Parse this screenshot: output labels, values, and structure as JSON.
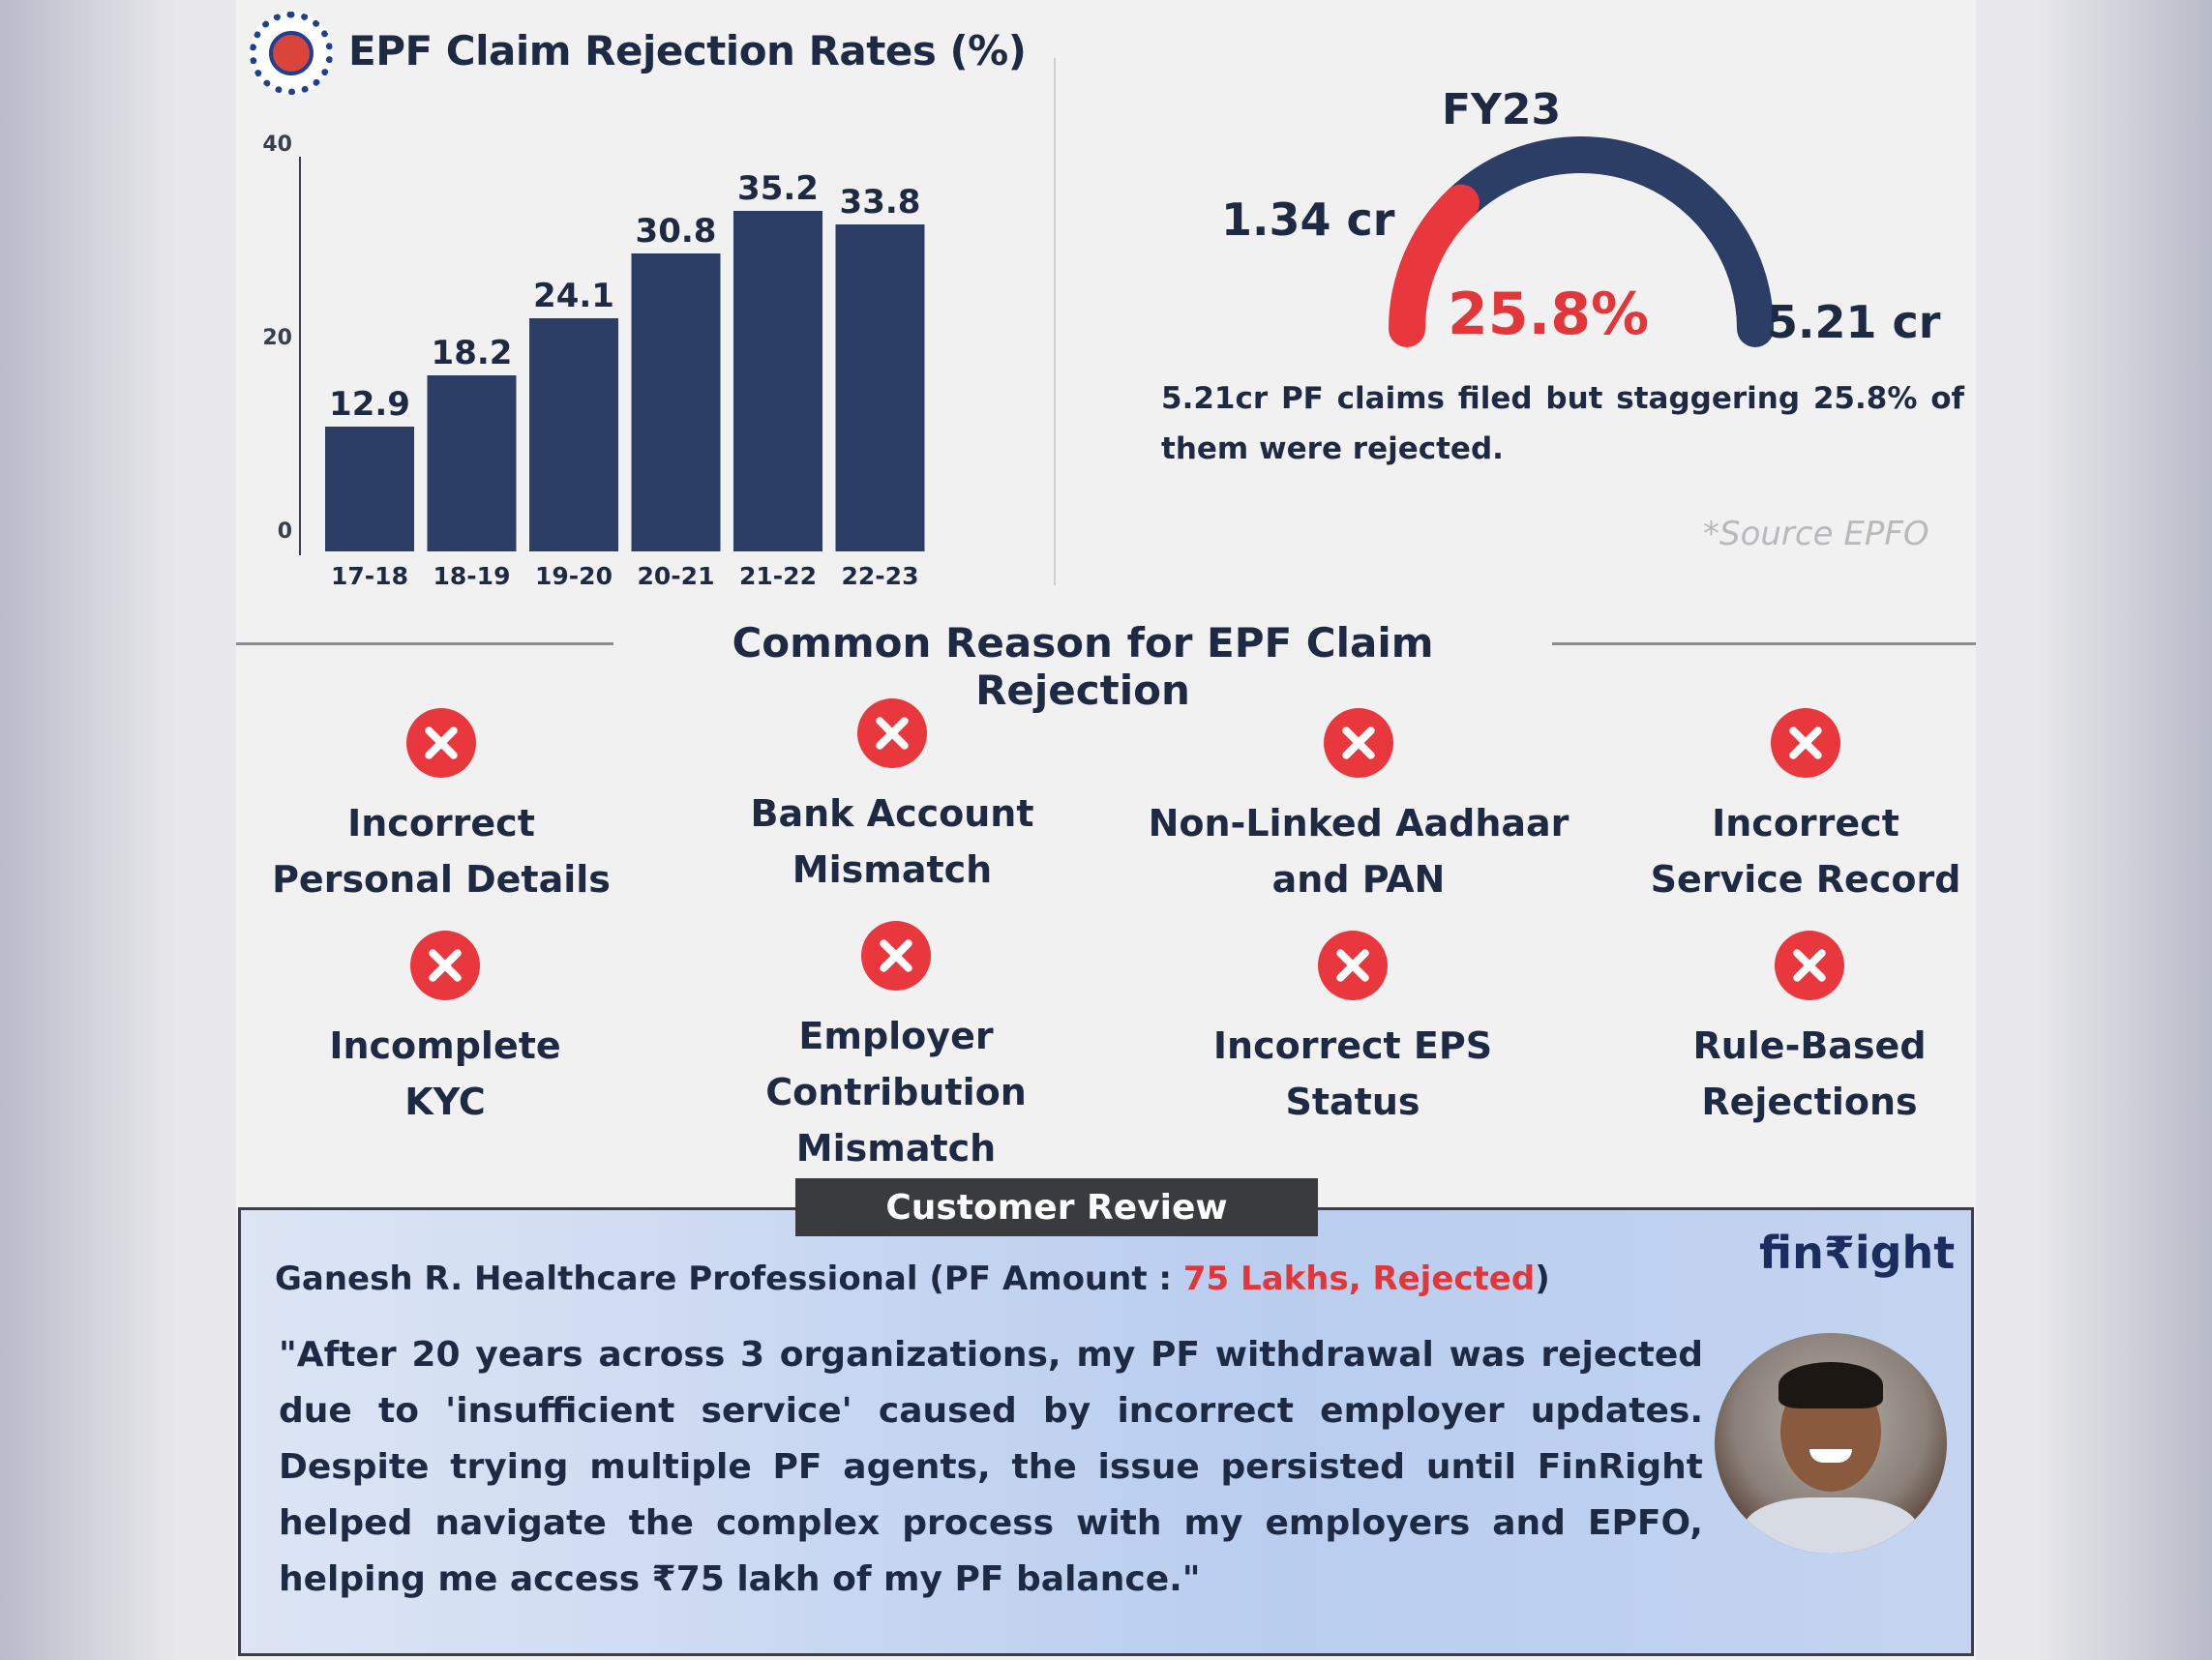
{
  "chart_title": "EPF Claim Rejection Rates  (%)",
  "chart_data": [
    {
      "type": "bar",
      "title": "EPF Claim Rejection Rates  (%)",
      "categories": [
        "17-18",
        "18-19",
        "19-20",
        "20-21",
        "21-22",
        "22-23"
      ],
      "values": [
        12.9,
        18.2,
        24.1,
        30.8,
        35.2,
        33.8
      ],
      "value_labels": [
        "12.9",
        "18.2",
        "24.1",
        "30.8",
        "35.2",
        "33.8"
      ],
      "y_ticks": [
        "0",
        "20",
        "40"
      ],
      "ylim": [
        0,
        40
      ],
      "grid": false,
      "colors": {
        "bar": "#2c3e66"
      }
    },
    {
      "type": "pie",
      "title": "FY23",
      "values": [
        1.34,
        5.21
      ],
      "labels": [
        "1.34 cr",
        "5.21 cr"
      ],
      "center_label": "25.8%",
      "fraction": 0.258,
      "colors": {
        "filled": "#e8383d",
        "track": "#2c3e66"
      }
    }
  ],
  "gauge": {
    "title": "FY23",
    "left_label": "1.34 cr",
    "right_label": "5.21 cr",
    "center_label": "25.8%",
    "caption": "5.21cr PF claims filed but staggering 25.8% of them were rejected."
  },
  "source": "*Source EPFO",
  "section_title": "Common Reason for EPF Claim Rejection",
  "reasons": [
    {
      "label": "Incorrect\nPersonal Details",
      "icon": "close-icon"
    },
    {
      "label": "Bank Account\nMismatch",
      "icon": "close-icon"
    },
    {
      "label": "Non-Linked Aadhaar\nand PAN",
      "icon": "close-icon"
    },
    {
      "label": "Incorrect\nService Record",
      "icon": "close-icon"
    },
    {
      "label": "Incomplete\nKYC",
      "icon": "close-icon"
    },
    {
      "label": "Employer Contribution\nMismatch",
      "icon": "close-icon"
    },
    {
      "label": "Incorrect EPS\nStatus",
      "icon": "close-icon"
    },
    {
      "label": "Rule-Based\nRejections",
      "icon": "close-icon"
    }
  ],
  "review": {
    "tab_label": "Customer Review",
    "brand": "fin₹ight",
    "reviewer_prefix": "Ganesh R. Healthcare Professional (PF Amount : ",
    "reviewer_highlight": "75 Lakhs, Rejected",
    "reviewer_suffix": ")",
    "quote": "\"After 20 years across 3 organizations, my PF withdrawal was rejected due to 'insufficient service' caused by incorrect employer updates. Despite trying multiple PF agents, the issue persisted until FinRight helped navigate the complex process with my employers and EPFO, helping me access ₹75 lakh of my PF balance.\""
  },
  "colors": {
    "navy": "#2c3e66",
    "red": "#e8383d",
    "text": "#1e2a44"
  }
}
